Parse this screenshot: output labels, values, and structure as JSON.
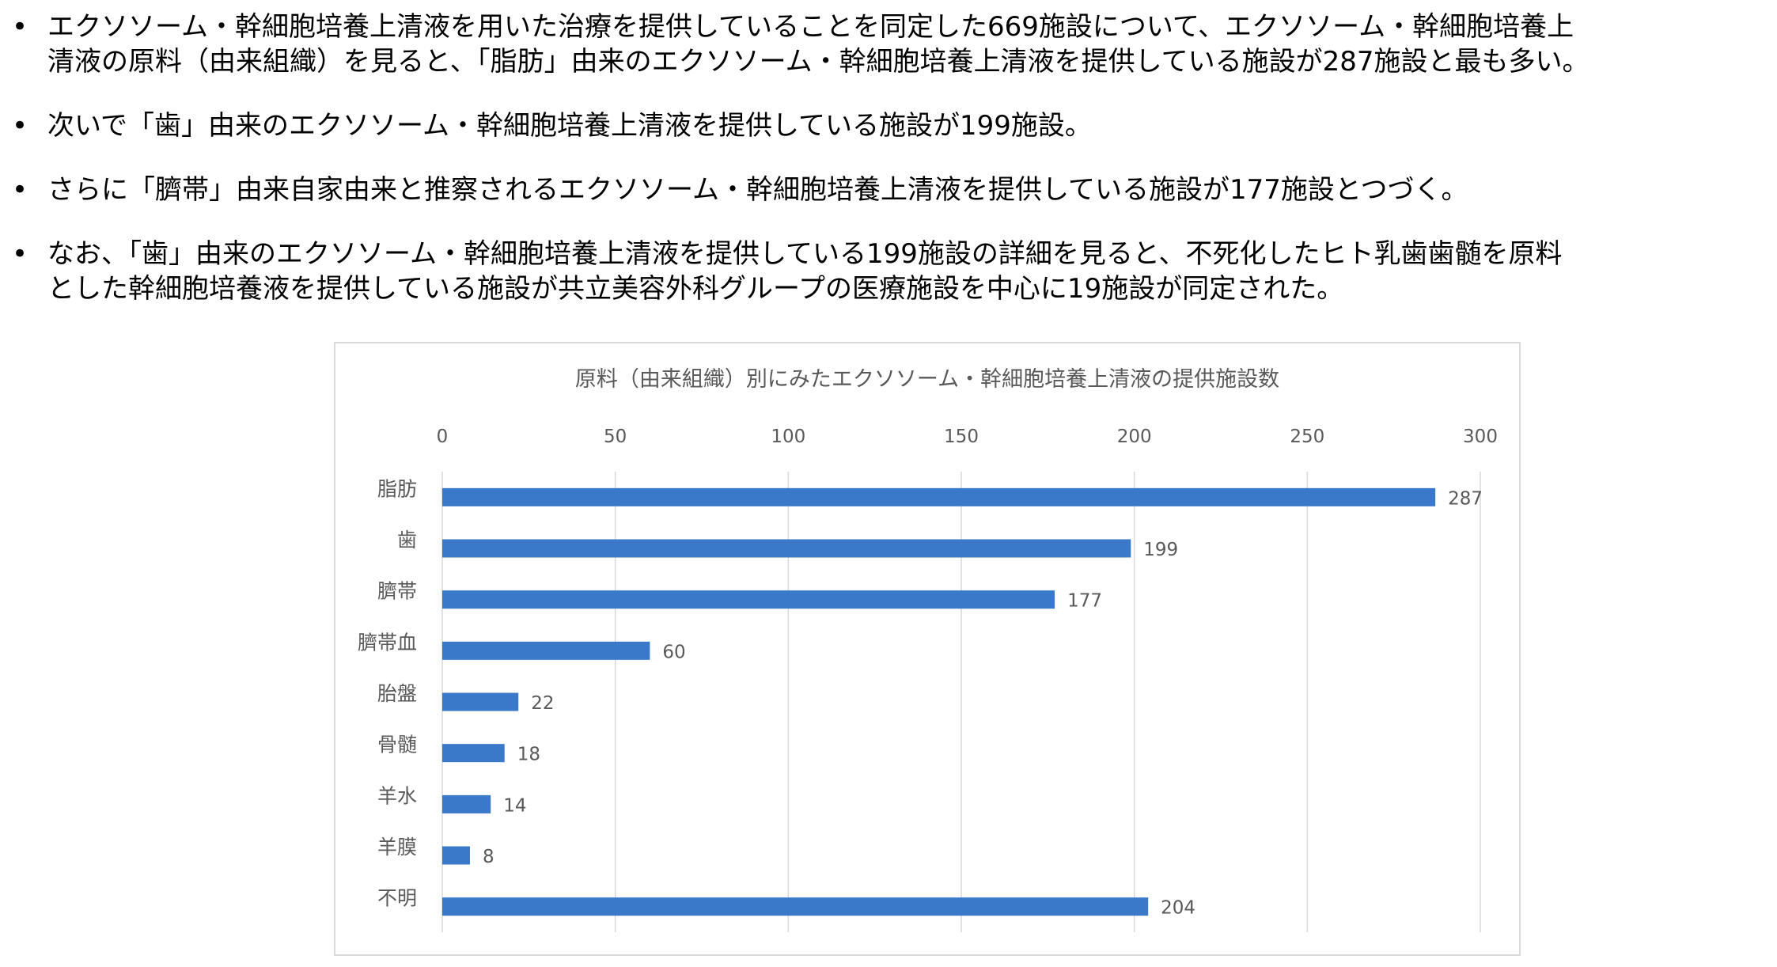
{
  "bullets": [
    {
      "lines": [
        "エクソソーム・幹細胞培養上清液を用いた治療を提供していることを同定した669施設について、エクソソーム・幹細胞培養上",
        "清液の原料（由来組織）を見ると、「脂肪」由来のエクソソーム・幹細胞培養上清液を提供している施設が287施設と最も多い。"
      ]
    },
    {
      "lines": [
        "次いで「歯」由来のエクソソーム・幹細胞培養上清液を提供している施設が199施設。"
      ]
    },
    {
      "lines": [
        "さらに「臍帯」由来自家由来と推察されるエクソソーム・幹細胞培養上清液を提供している施設が177施設とつづく。"
      ]
    },
    {
      "lines": [
        "なお、「歯」由来のエクソソーム・幹細胞培養上清液を提供している199施設の詳細を見ると、不死化したヒト乳歯歯髄を原料",
        "とした幹細胞培養液を提供している施設が共立美容外科グループの医療施設を中心に19施設が同定された。"
      ]
    }
  ],
  "chart_data": {
    "type": "bar",
    "orientation": "horizontal",
    "title": "原料（由来組織）別にみたエクソソーム・幹細胞培養上清液の提供施設数",
    "categories": [
      "脂肪",
      "歯",
      "臍帯",
      "臍帯血",
      "胎盤",
      "骨髄",
      "羊水",
      "羊膜",
      "不明"
    ],
    "values": [
      287,
      199,
      177,
      60,
      22,
      18,
      14,
      8,
      204
    ],
    "xlim": [
      0,
      300
    ],
    "xticks": [
      0,
      50,
      100,
      150,
      200,
      250,
      300
    ],
    "axis_position": "top",
    "grid": true,
    "data_labels": true,
    "bar_color": "#3a78c9",
    "grid_color": "#d9d9d9"
  }
}
